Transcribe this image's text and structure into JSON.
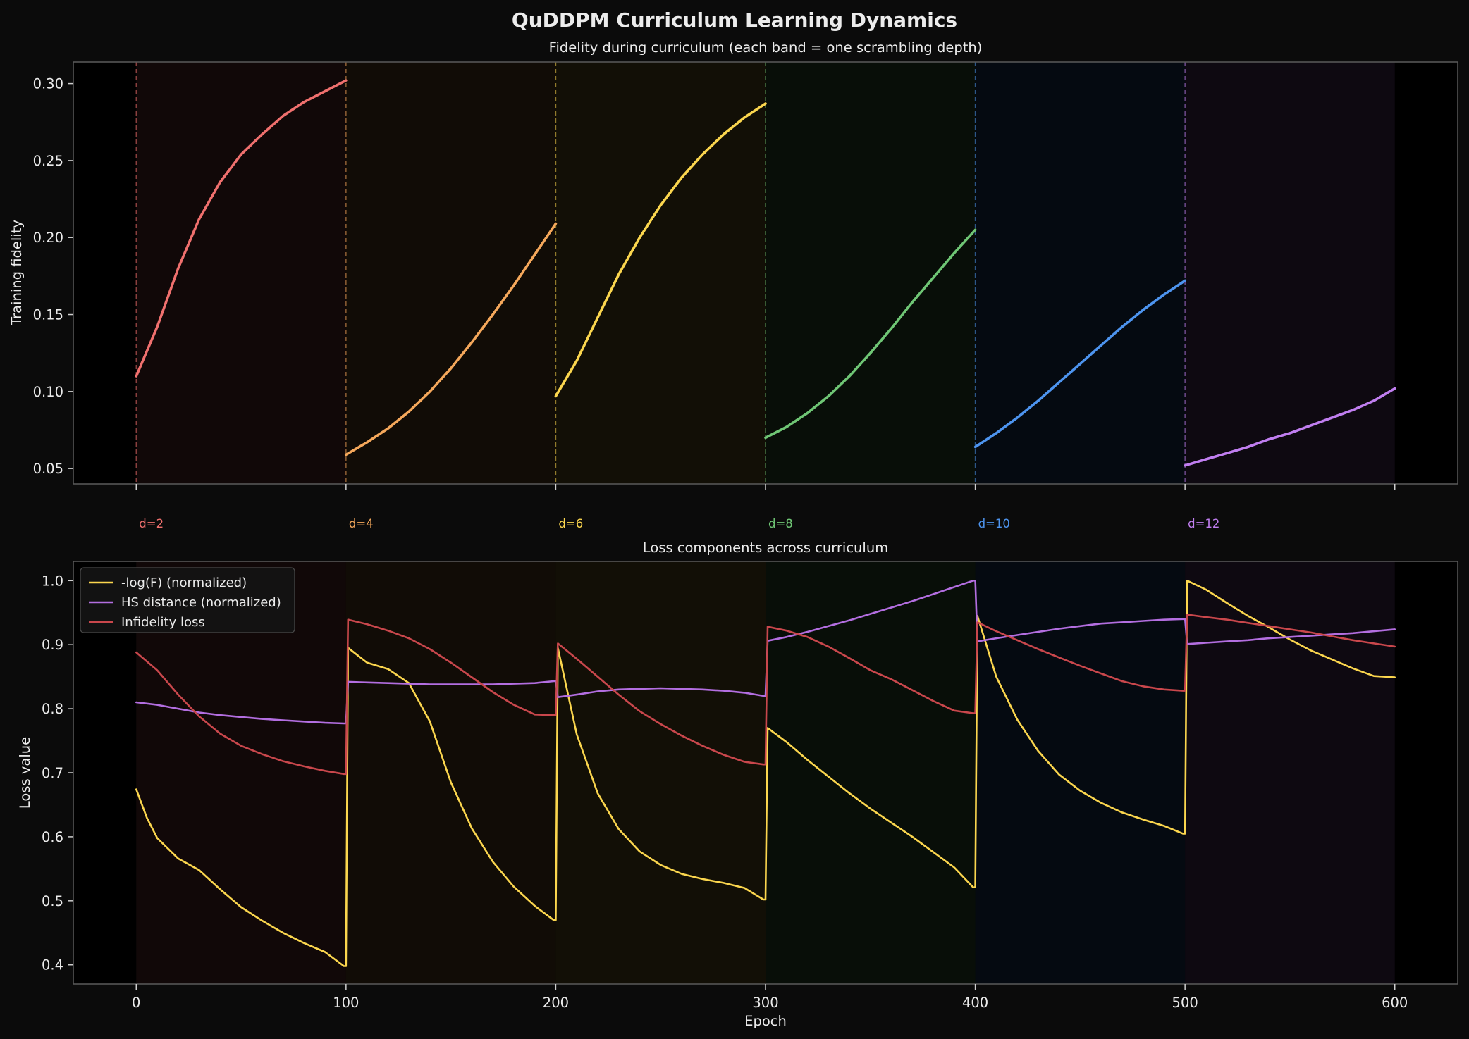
{
  "figure_title": "QuDDPM Curriculum Learning Dynamics",
  "chart_data": [
    {
      "type": "line",
      "title": "Fidelity during curriculum (each band = one scrambling depth)",
      "xlabel": "",
      "ylabel": "Training fidelity",
      "xlim": [
        -30,
        630
      ],
      "ylim": [
        0.04,
        0.314
      ],
      "yticks": [
        0.05,
        0.1,
        0.15,
        0.2,
        0.25,
        0.3
      ],
      "ytick_labels": [
        "0.05",
        "0.10",
        "0.15",
        "0.20",
        "0.25",
        "0.30"
      ],
      "xticks": [
        0,
        100,
        200,
        300,
        400,
        500,
        600
      ],
      "grid": false,
      "bands": [
        {
          "label": "d=2",
          "start": 0,
          "end": 100,
          "color": "#f0706e"
        },
        {
          "label": "d=4",
          "start": 100,
          "end": 200,
          "color": "#f5a85b"
        },
        {
          "label": "d=6",
          "start": 200,
          "end": 300,
          "color": "#fbd64e"
        },
        {
          "label": "d=8",
          "start": 300,
          "end": 400,
          "color": "#6fc675"
        },
        {
          "label": "d=10",
          "start": 400,
          "end": 500,
          "color": "#4d94ef"
        },
        {
          "label": "d=12",
          "start": 500,
          "end": 600,
          "color": "#c07ef0"
        }
      ],
      "series": [
        {
          "name": "d=2",
          "color": "#f0706e",
          "x": [
            0,
            10,
            20,
            30,
            40,
            50,
            60,
            70,
            80,
            90,
            100
          ],
          "y": [
            0.11,
            0.142,
            0.18,
            0.212,
            0.236,
            0.254,
            0.267,
            0.279,
            0.288,
            0.295,
            0.302
          ]
        },
        {
          "name": "d=4",
          "color": "#f5a85b",
          "x": [
            100,
            110,
            120,
            130,
            140,
            150,
            160,
            170,
            180,
            190,
            200
          ],
          "y": [
            0.059,
            0.067,
            0.076,
            0.087,
            0.1,
            0.115,
            0.132,
            0.15,
            0.169,
            0.189,
            0.209
          ]
        },
        {
          "name": "d=6",
          "color": "#fbd64e",
          "x": [
            200,
            210,
            220,
            230,
            240,
            250,
            260,
            270,
            280,
            290,
            300
          ],
          "y": [
            0.097,
            0.12,
            0.148,
            0.176,
            0.2,
            0.221,
            0.239,
            0.254,
            0.267,
            0.278,
            0.287
          ]
        },
        {
          "name": "d=8",
          "color": "#6fc675",
          "x": [
            300,
            310,
            320,
            330,
            340,
            350,
            360,
            370,
            380,
            390,
            400
          ],
          "y": [
            0.07,
            0.077,
            0.086,
            0.097,
            0.11,
            0.125,
            0.141,
            0.158,
            0.174,
            0.19,
            0.205
          ]
        },
        {
          "name": "d=10",
          "color": "#4d94ef",
          "x": [
            400,
            410,
            420,
            430,
            440,
            450,
            460,
            470,
            480,
            490,
            500
          ],
          "y": [
            0.064,
            0.073,
            0.083,
            0.094,
            0.106,
            0.118,
            0.13,
            0.142,
            0.153,
            0.163,
            0.172
          ]
        },
        {
          "name": "d=12",
          "color": "#c07ef0",
          "x": [
            500,
            510,
            520,
            530,
            540,
            550,
            560,
            570,
            580,
            590,
            600
          ],
          "y": [
            0.052,
            0.056,
            0.06,
            0.064,
            0.069,
            0.073,
            0.078,
            0.083,
            0.088,
            0.094,
            0.102
          ]
        }
      ]
    },
    {
      "type": "line",
      "title": "Loss components across curriculum",
      "xlabel": "Epoch",
      "ylabel": "Loss value",
      "xlim": [
        -30,
        630
      ],
      "ylim": [
        0.37,
        1.03
      ],
      "yticks": [
        0.4,
        0.5,
        0.6,
        0.7,
        0.8,
        0.9,
        1.0
      ],
      "ytick_labels": [
        "0.4",
        "0.5",
        "0.6",
        "0.7",
        "0.8",
        "0.9",
        "1.0"
      ],
      "xticks": [
        0,
        100,
        200,
        300,
        400,
        500,
        600
      ],
      "xtick_labels": [
        "0",
        "100",
        "200",
        "300",
        "400",
        "500",
        "600"
      ],
      "grid": false,
      "legend_position": "top-left",
      "series": [
        {
          "name": "-log(F) (normalized)",
          "color": "#fbd64e",
          "x": [
            0,
            5,
            10,
            20,
            30,
            40,
            50,
            60,
            70,
            80,
            90,
            99,
            100,
            101,
            110,
            120,
            130,
            140,
            150,
            160,
            170,
            180,
            190,
            199,
            200,
            201,
            210,
            220,
            230,
            240,
            250,
            260,
            270,
            280,
            290,
            299,
            300,
            301,
            310,
            320,
            330,
            340,
            350,
            360,
            370,
            380,
            390,
            399,
            400,
            401,
            410,
            420,
            430,
            440,
            450,
            460,
            470,
            480,
            490,
            499,
            500,
            501,
            510,
            520,
            530,
            540,
            550,
            560,
            570,
            580,
            590,
            600
          ],
          "y": [
            0.674,
            0.63,
            0.598,
            0.566,
            0.548,
            0.518,
            0.49,
            0.469,
            0.45,
            0.434,
            0.42,
            0.398,
            0.398,
            0.895,
            0.872,
            0.862,
            0.84,
            0.78,
            0.685,
            0.613,
            0.561,
            0.522,
            0.492,
            0.47,
            0.47,
            0.895,
            0.76,
            0.668,
            0.612,
            0.577,
            0.556,
            0.542,
            0.534,
            0.528,
            0.52,
            0.502,
            0.502,
            0.77,
            0.748,
            0.72,
            0.694,
            0.668,
            0.644,
            0.622,
            0.6,
            0.576,
            0.552,
            0.521,
            0.521,
            0.945,
            0.85,
            0.783,
            0.734,
            0.697,
            0.672,
            0.653,
            0.638,
            0.627,
            0.617,
            0.605,
            0.605,
            1.0,
            0.986,
            0.965,
            0.945,
            0.927,
            0.908,
            0.891,
            0.877,
            0.863,
            0.851,
            0.849
          ]
        },
        {
          "name": "HS distance (normalized)",
          "color": "#b36ee0",
          "x": [
            0,
            10,
            20,
            30,
            40,
            50,
            60,
            70,
            80,
            90,
            99,
            100,
            101,
            110,
            120,
            130,
            140,
            150,
            160,
            170,
            180,
            190,
            199,
            200,
            201,
            210,
            220,
            230,
            240,
            250,
            260,
            270,
            280,
            290,
            299,
            300,
            301,
            310,
            320,
            330,
            340,
            350,
            360,
            370,
            380,
            390,
            399,
            400,
            401,
            410,
            420,
            430,
            440,
            450,
            460,
            470,
            480,
            490,
            499,
            500,
            501,
            510,
            520,
            530,
            540,
            550,
            560,
            570,
            580,
            590,
            600
          ],
          "y": [
            0.81,
            0.806,
            0.8,
            0.794,
            0.79,
            0.787,
            0.784,
            0.782,
            0.78,
            0.778,
            0.777,
            0.777,
            0.842,
            0.841,
            0.84,
            0.839,
            0.838,
            0.838,
            0.838,
            0.838,
            0.839,
            0.84,
            0.843,
            0.843,
            0.818,
            0.822,
            0.827,
            0.83,
            0.831,
            0.832,
            0.831,
            0.83,
            0.828,
            0.825,
            0.82,
            0.82,
            0.906,
            0.912,
            0.92,
            0.929,
            0.938,
            0.948,
            0.958,
            0.968,
            0.979,
            0.99,
            1.0,
            1.0,
            0.905,
            0.91,
            0.915,
            0.92,
            0.925,
            0.929,
            0.933,
            0.935,
            0.937,
            0.939,
            0.94,
            0.94,
            0.901,
            0.903,
            0.905,
            0.907,
            0.91,
            0.912,
            0.914,
            0.916,
            0.918,
            0.921,
            0.924
          ]
        },
        {
          "name": "Infidelity loss",
          "color": "#c9474c",
          "x": [
            0,
            10,
            20,
            30,
            40,
            50,
            60,
            70,
            80,
            90,
            99,
            100,
            101,
            110,
            120,
            130,
            140,
            150,
            160,
            170,
            180,
            190,
            199,
            200,
            201,
            210,
            220,
            230,
            240,
            250,
            260,
            270,
            280,
            290,
            299,
            300,
            301,
            310,
            320,
            330,
            340,
            350,
            360,
            370,
            380,
            390,
            399,
            400,
            401,
            410,
            420,
            430,
            440,
            450,
            460,
            470,
            480,
            490,
            499,
            500,
            501,
            510,
            520,
            530,
            540,
            550,
            560,
            570,
            580,
            590,
            600
          ],
          "y": [
            0.888,
            0.86,
            0.822,
            0.788,
            0.761,
            0.742,
            0.729,
            0.718,
            0.71,
            0.703,
            0.698,
            0.698,
            0.939,
            0.932,
            0.922,
            0.91,
            0.893,
            0.872,
            0.849,
            0.826,
            0.806,
            0.791,
            0.79,
            0.79,
            0.902,
            0.878,
            0.85,
            0.822,
            0.796,
            0.776,
            0.758,
            0.742,
            0.728,
            0.717,
            0.713,
            0.713,
            0.928,
            0.922,
            0.912,
            0.897,
            0.879,
            0.86,
            0.846,
            0.829,
            0.812,
            0.797,
            0.793,
            0.793,
            0.935,
            0.921,
            0.907,
            0.893,
            0.88,
            0.867,
            0.855,
            0.843,
            0.835,
            0.83,
            0.828,
            0.828,
            0.947,
            0.943,
            0.939,
            0.934,
            0.929,
            0.924,
            0.919,
            0.913,
            0.907,
            0.902,
            0.897
          ]
        }
      ]
    }
  ]
}
